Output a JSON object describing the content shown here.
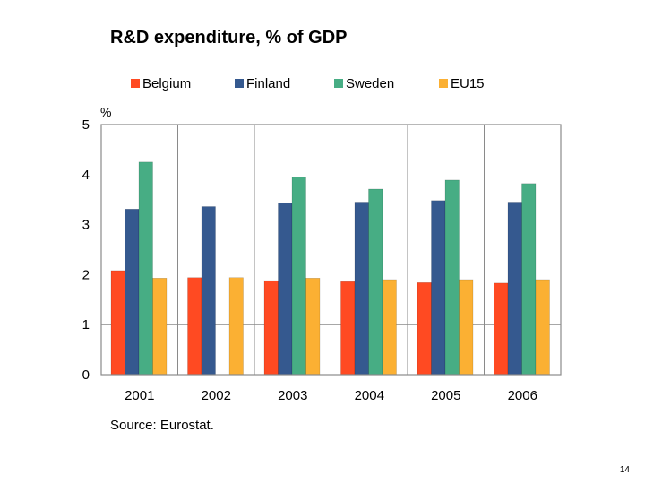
{
  "page_number": "14",
  "source": "Source: Eurostat.",
  "chart_data": {
    "type": "bar",
    "title": "R&D expenditure, % of GDP",
    "ylabel": "%",
    "xlabel": "",
    "categories": [
      "2001",
      "2002",
      "2003",
      "2004",
      "2005",
      "2006"
    ],
    "ylim": [
      0,
      5
    ],
    "yticks": [
      0,
      1,
      2,
      3,
      4,
      5
    ],
    "grid": "horizontal at 1 only; vertical separators between categories",
    "legend": "top",
    "series": [
      {
        "name": "Belgium",
        "color": "#ff4a22",
        "values": [
          2.08,
          1.94,
          1.88,
          1.86,
          1.84,
          1.83
        ]
      },
      {
        "name": "Finland",
        "color": "#35598f",
        "values": [
          3.31,
          3.36,
          3.43,
          3.45,
          3.48,
          3.45
        ]
      },
      {
        "name": "Sweden",
        "color": "#47ad84",
        "values": [
          4.25,
          null,
          3.95,
          3.71,
          3.89,
          3.82
        ]
      },
      {
        "name": "EU15",
        "color": "#fbb033",
        "values": [
          1.93,
          1.94,
          1.93,
          1.9,
          1.9,
          1.9
        ]
      }
    ]
  }
}
